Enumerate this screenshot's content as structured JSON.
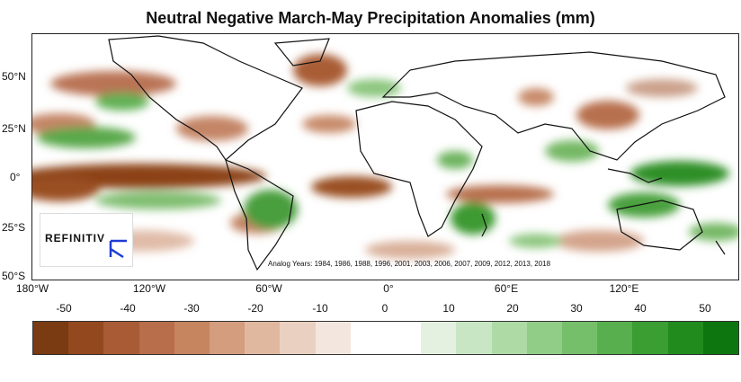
{
  "title": "Neutral Negative March-May Precipitation Anomalies (mm)",
  "lat_labels": [
    "50°N",
    "25°N",
    "0°",
    "25°S",
    "50°S"
  ],
  "lon_labels": [
    "180°W",
    "120°W",
    "60°W",
    "0°",
    "60°E",
    "120°E"
  ],
  "logo": {
    "text": "REFINITIV",
    "icon": "refinitiv-logo-icon"
  },
  "analog_years": "Analog Years: 1984, 1986, 1988, 1996, 2001, 2003, 2006, 2007, 2009, 2012, 2013, 2018",
  "scale": {
    "tick_labels": [
      "-50",
      "-40",
      "-30",
      "-20",
      "-10",
      "0",
      "10",
      "20",
      "30",
      "40",
      "50"
    ],
    "colors": [
      "#7a3a12",
      "#94481e",
      "#a85b34",
      "#b86e4a",
      "#c6855f",
      "#d39d7e",
      "#e0b8a0",
      "#ead0c0",
      "#f3e6de",
      "#ffffff",
      "#ffffff",
      "#e4f1e1",
      "#c9e6c4",
      "#aedaa6",
      "#92cd88",
      "#75bf6a",
      "#57b04d",
      "#3a9e33",
      "#218b1e",
      "#0d760f"
    ]
  }
}
